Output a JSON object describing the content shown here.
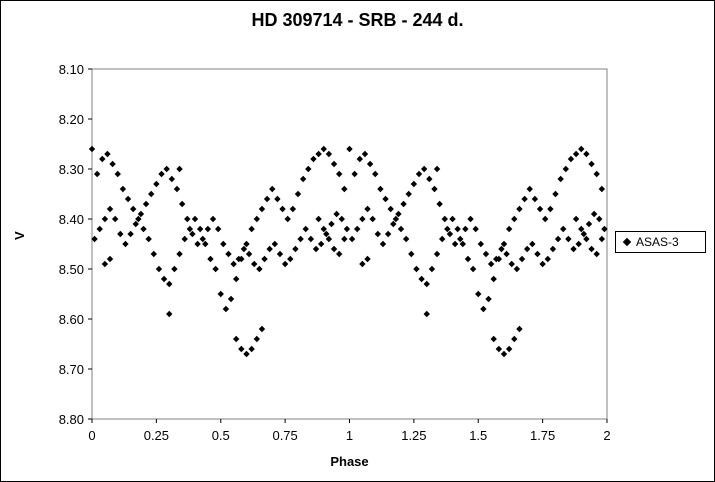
{
  "chart_data": {
    "type": "scatter",
    "title": "HD 309714 - SRB - 244 d.",
    "xlabel": "Phase",
    "ylabel": "V",
    "xlim": [
      0,
      2
    ],
    "ylim": [
      8.1,
      8.8
    ],
    "y_inverted": true,
    "x_ticks": [
      "0",
      "0.25",
      "0.5",
      "0.75",
      "1",
      "1.25",
      "1.5",
      "1.75",
      "2"
    ],
    "y_ticks": [
      "8.10",
      "8.20",
      "8.30",
      "8.40",
      "8.50",
      "8.60",
      "8.70",
      "8.80"
    ],
    "grid": false,
    "legend_position": "right",
    "marker": "diamond",
    "color": "#000000",
    "series": [
      {
        "name": "ASAS-3",
        "x": [
          0.0,
          0.02,
          0.04,
          0.06,
          0.08,
          0.1,
          0.12,
          0.14,
          0.16,
          0.18,
          0.2,
          0.22,
          0.24,
          0.26,
          0.28,
          0.3,
          0.32,
          0.34,
          0.36,
          0.38,
          0.4,
          0.42,
          0.44,
          0.46,
          0.48,
          0.5,
          0.52,
          0.54,
          0.56,
          0.58,
          0.6,
          0.62,
          0.64,
          0.66,
          0.68,
          0.7,
          0.72,
          0.74,
          0.76,
          0.78,
          0.8,
          0.82,
          0.84,
          0.86,
          0.88,
          0.9,
          0.92,
          0.94,
          0.96,
          0.98,
          0.01,
          0.03,
          0.05,
          0.07,
          0.09,
          0.11,
          0.13,
          0.15,
          0.17,
          0.19,
          0.21,
          0.23,
          0.25,
          0.27,
          0.29,
          0.31,
          0.33,
          0.35,
          0.37,
          0.39,
          0.41,
          0.43,
          0.45,
          0.47,
          0.49,
          0.51,
          0.53,
          0.55,
          0.57,
          0.59,
          0.61,
          0.63,
          0.65,
          0.67,
          0.69,
          0.71,
          0.73,
          0.75,
          0.77,
          0.79,
          0.81,
          0.83,
          0.85,
          0.87,
          0.89,
          0.91,
          0.93,
          0.95,
          0.97,
          0.99,
          0.3,
          0.56,
          0.58,
          0.6,
          0.62,
          0.64,
          0.66,
          0.88,
          0.9,
          0.92,
          0.94,
          0.96,
          0.98,
          0.05,
          0.07,
          0.34
        ],
        "y": [
          8.26,
          8.31,
          8.28,
          8.27,
          8.29,
          8.31,
          8.34,
          8.36,
          8.38,
          8.4,
          8.42,
          8.44,
          8.47,
          8.5,
          8.52,
          8.53,
          8.5,
          8.47,
          8.44,
          8.42,
          8.4,
          8.42,
          8.45,
          8.48,
          8.5,
          8.55,
          8.58,
          8.56,
          8.52,
          8.48,
          8.45,
          8.42,
          8.4,
          8.38,
          8.36,
          8.34,
          8.36,
          8.38,
          8.4,
          8.38,
          8.35,
          8.32,
          8.3,
          8.28,
          8.27,
          8.26,
          8.27,
          8.29,
          8.31,
          8.34,
          8.44,
          8.42,
          8.4,
          8.38,
          8.4,
          8.43,
          8.45,
          8.43,
          8.41,
          8.39,
          8.37,
          8.35,
          8.33,
          8.31,
          8.3,
          8.32,
          8.34,
          8.37,
          8.4,
          8.43,
          8.45,
          8.44,
          8.42,
          8.4,
          8.42,
          8.45,
          8.47,
          8.49,
          8.48,
          8.46,
          8.47,
          8.49,
          8.5,
          8.48,
          8.46,
          8.45,
          8.47,
          8.49,
          8.48,
          8.46,
          8.44,
          8.42,
          8.44,
          8.46,
          8.45,
          8.43,
          8.41,
          8.39,
          8.4,
          8.42,
          8.59,
          8.64,
          8.66,
          8.67,
          8.66,
          8.64,
          8.62,
          8.4,
          8.42,
          8.44,
          8.46,
          8.47,
          8.44,
          8.49,
          8.48,
          8.3
        ]
      }
    ]
  }
}
